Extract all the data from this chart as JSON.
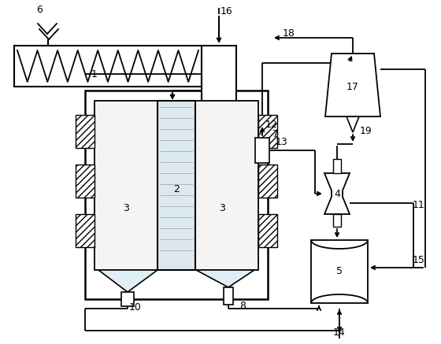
{
  "bg_color": "#ffffff",
  "lc": "#000000",
  "lw": 1.3
}
